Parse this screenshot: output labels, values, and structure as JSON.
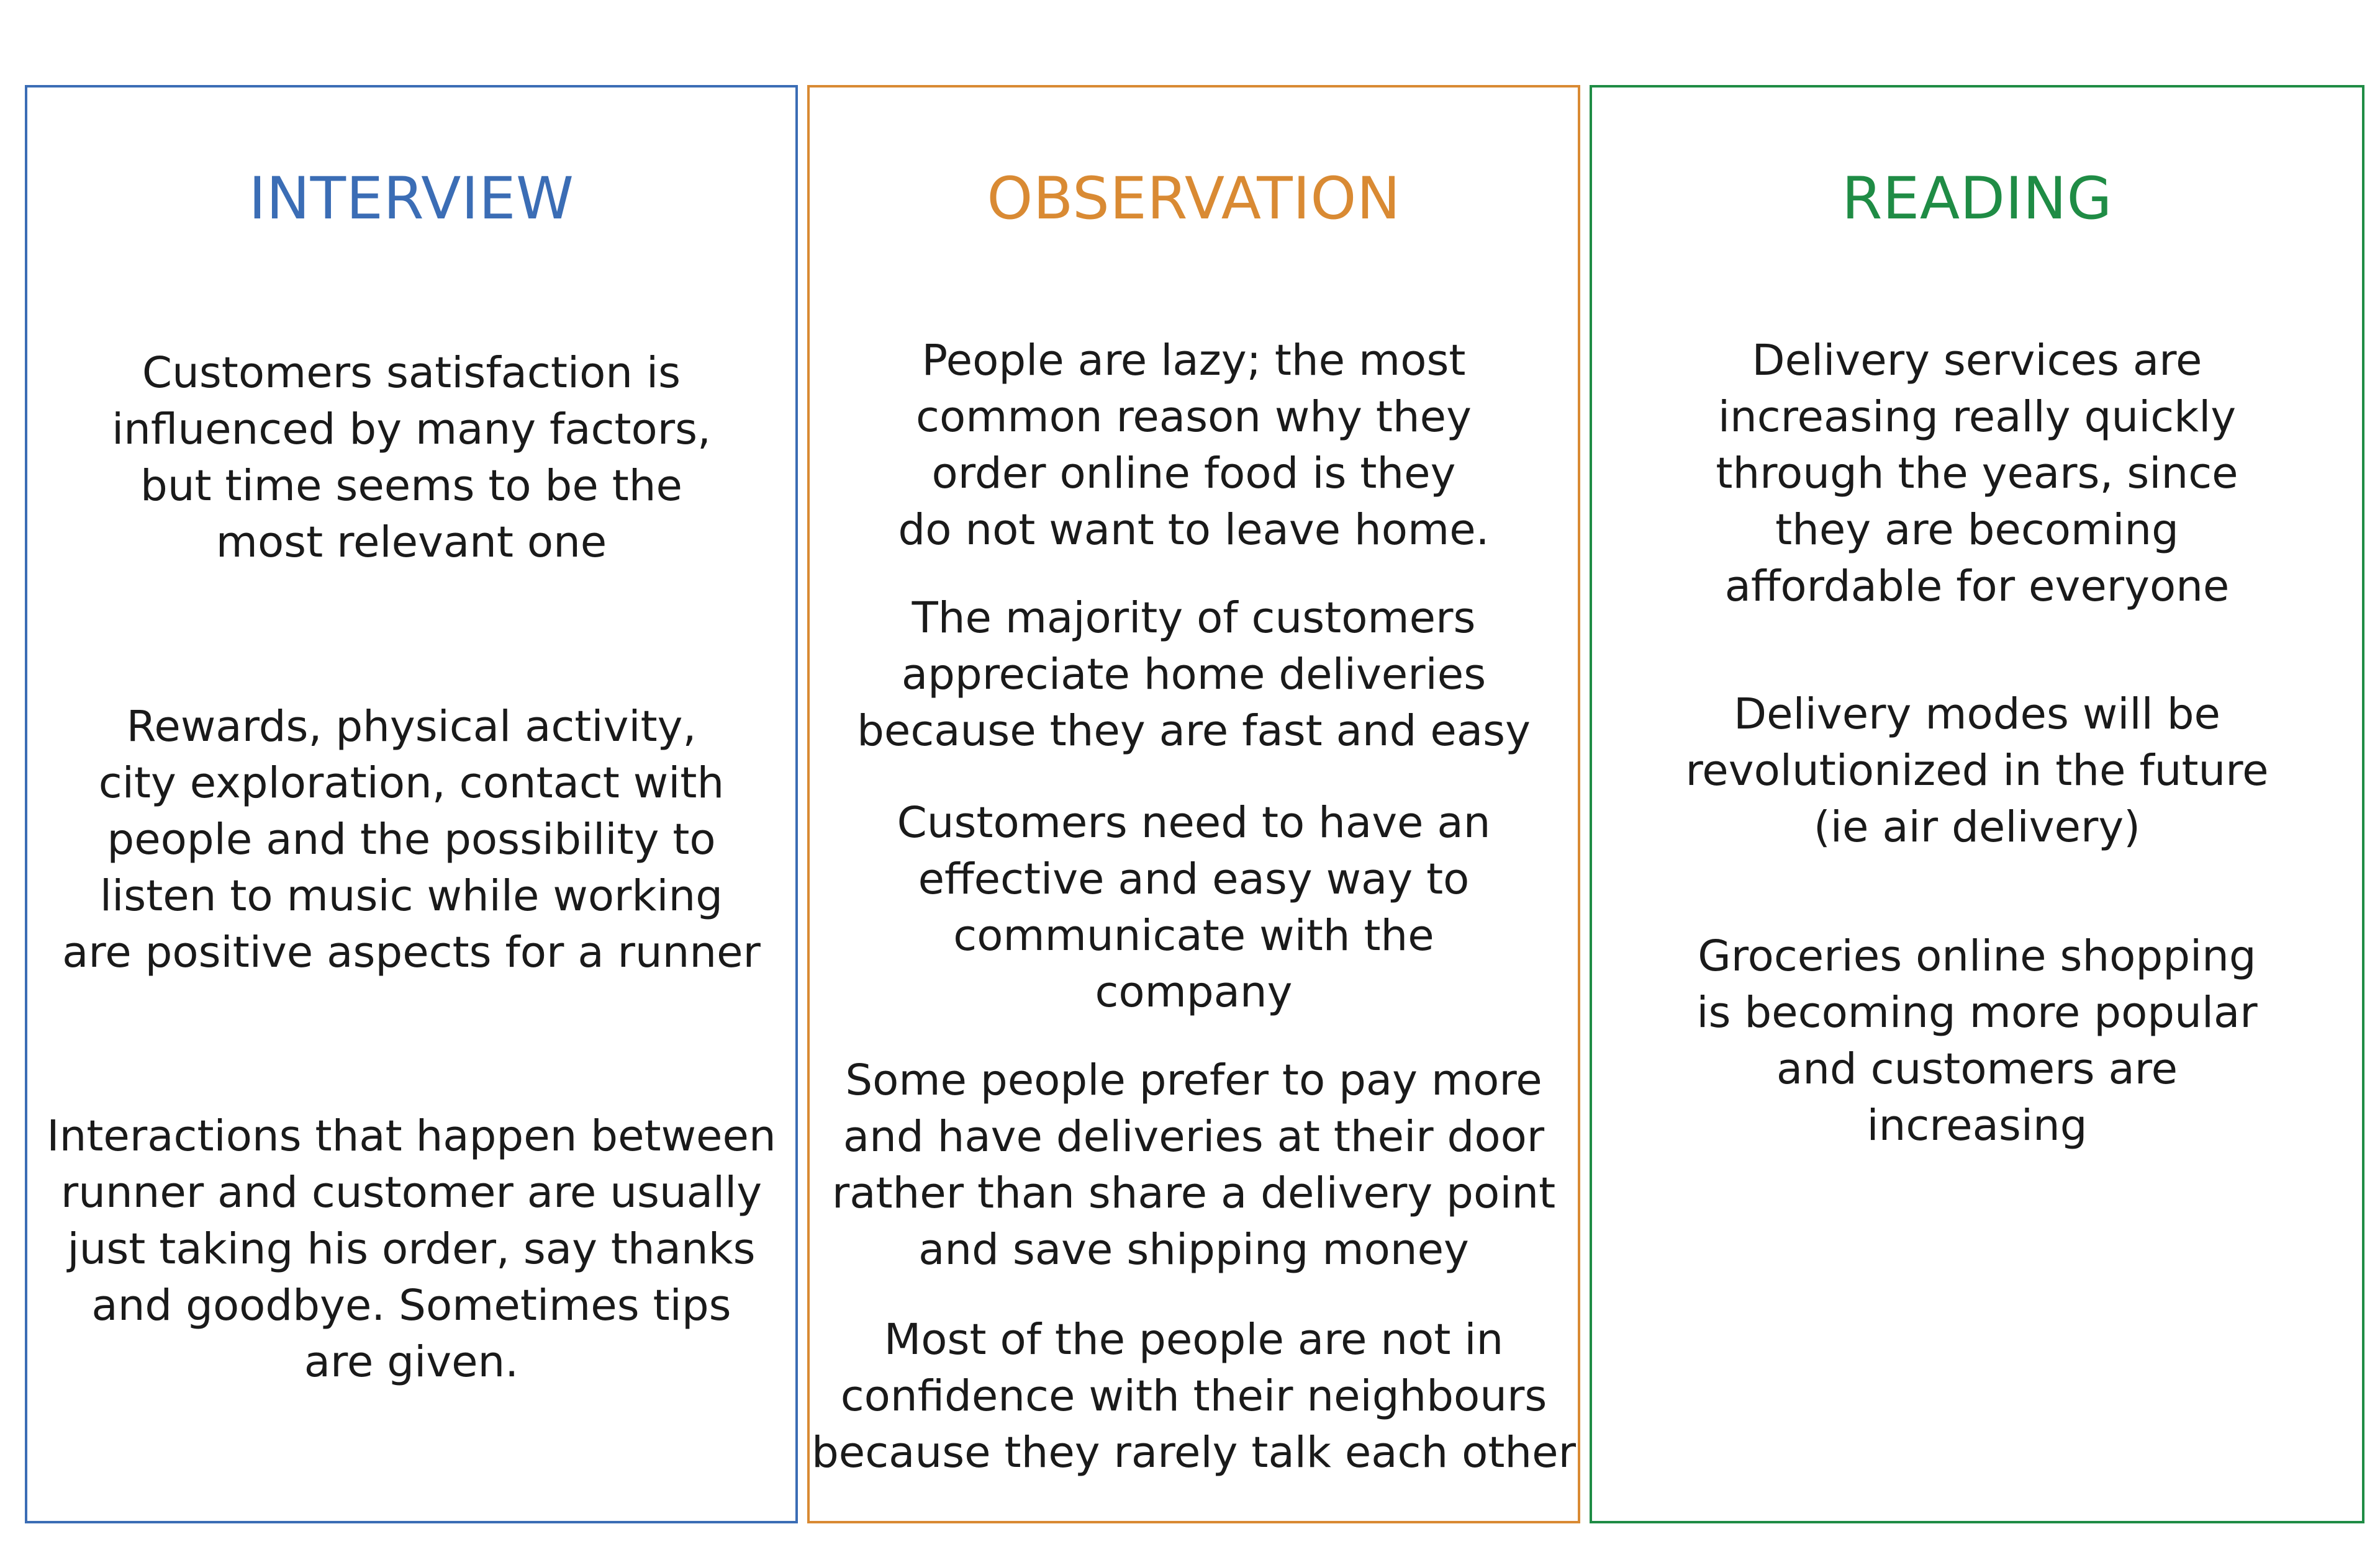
{
  "colors": {
    "interview": "#3b6db5",
    "observation": "#d98a33",
    "reading": "#1f8c45"
  },
  "columns": [
    {
      "title": "INTERVIEW",
      "items": [
        "Customers satisfaction is\ninfluenced by many factors,\nbut time seems to be the\nmost relevant one",
        "Rewards, physical activity,\ncity exploration, contact with\npeople and the possibility to\nlisten to music while working\nare positive aspects for a runner",
        "Interactions that happen between\nrunner and customer are usually\njust taking his order, say thanks\nand goodbye. Sometimes tips\nare given."
      ]
    },
    {
      "title": "OBSERVATION",
      "items": [
        "People are lazy; the most\ncommon reason why they\norder online food is they\ndo not want to leave home.",
        "The majority of customers\nappreciate home deliveries\nbecause they are fast and easy",
        "Customers need to have an\neffective and easy way to\ncommunicate with the\ncompany",
        "Some people prefer to pay more\nand have deliveries at their door\nrather than share a delivery point\nand save shipping money",
        "Most of the people are not in\nconfidence with their neighbours\nbecause they rarely talk each other"
      ]
    },
    {
      "title": "READING",
      "items": [
        "Delivery services are\nincreasing really quickly\nthrough the years, since\nthey are becoming\naffordable for everyone",
        "Delivery modes will be\nrevolutionized in the future\n(ie air delivery)",
        "Groceries online shopping\nis becoming more popular\nand customers are\nincreasing"
      ]
    }
  ]
}
